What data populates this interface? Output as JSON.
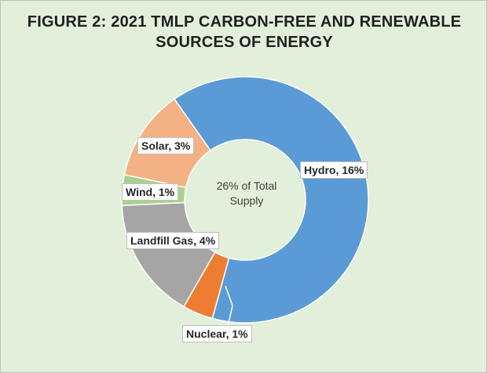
{
  "chart_data": {
    "type": "donut",
    "title_lines": [
      "FIGURE 2: 2021 TMLP CARBON-FREE AND RENEWABLE",
      "SOURCES OF ENERGY"
    ],
    "center_text_lines": [
      "26% of Total",
      "Supply"
    ],
    "slices": [
      {
        "name": "Hydro",
        "value": 16,
        "label": "Hydro, 16%",
        "color": "#5b9bd5"
      },
      {
        "name": "Nuclear",
        "value": 1,
        "label": "Nuclear, 1%",
        "color": "#ed7d31"
      },
      {
        "name": "Landfill Gas",
        "value": 4,
        "label": "Landfill Gas, 4%",
        "color": "#a5a5a5"
      },
      {
        "name": "Wind",
        "value": 1,
        "label": "Wind, 1%",
        "color": "#a9d18e"
      },
      {
        "name": "Solar",
        "value": 3,
        "label": "Solar, 3%",
        "color": "#f4b183"
      }
    ],
    "background_color": "#e2efda",
    "slice_border_color": "#ffffff"
  }
}
